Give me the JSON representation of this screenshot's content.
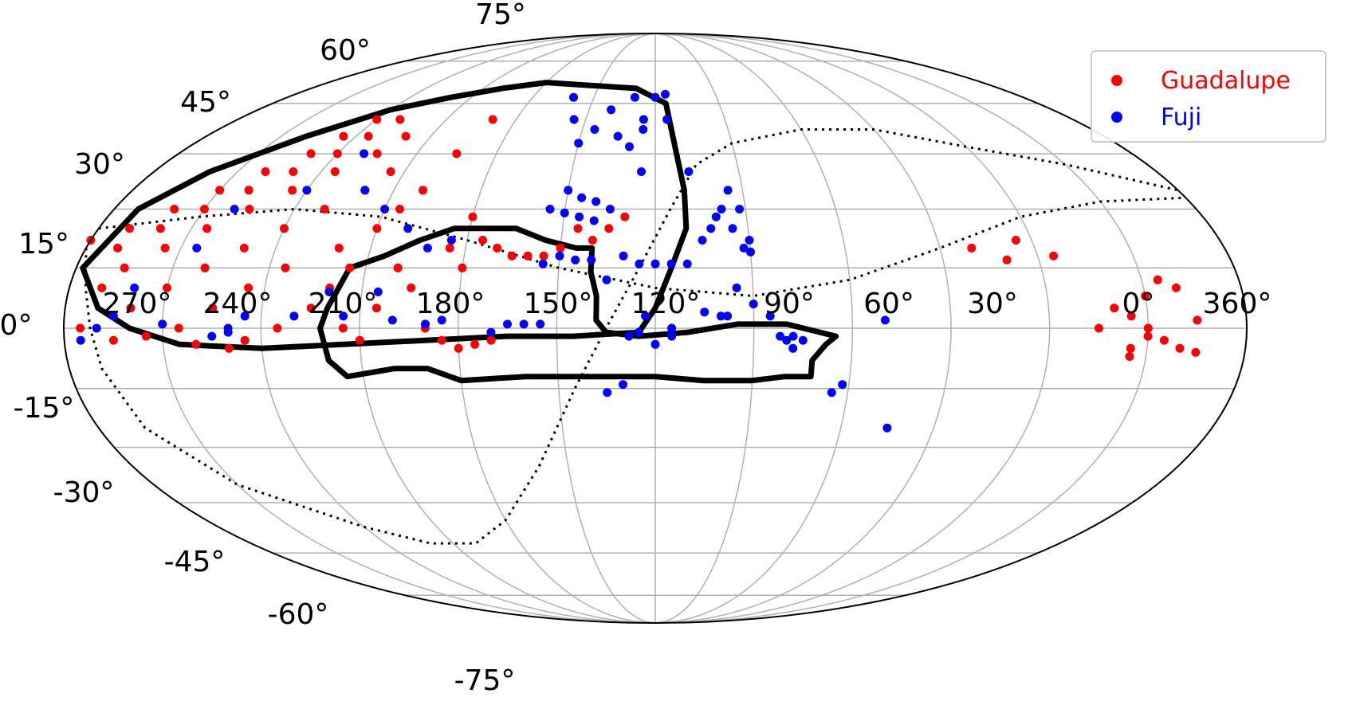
{
  "chart_data": {
    "type": "scatter",
    "projection": "mollweide",
    "title": "",
    "xlabel": "",
    "ylabel": "",
    "ra_tick_labels": [
      "270°",
      "240°",
      "210°",
      "180°",
      "150°",
      "120°",
      "90°",
      "60°",
      "30°",
      "0°",
      "360°"
    ],
    "dec_tick_labels": [
      "75°",
      "60°",
      "45°",
      "30°",
      "15°",
      "0°",
      "-15°",
      "-30°",
      "-45°",
      "-60°",
      "-75°"
    ],
    "grid": true,
    "legend_position": "top-right",
    "colors": {
      "Guadalupe": "#ff0000",
      "Fuji": "#0000ff",
      "footprint": "#000000",
      "grid": "#b0b0b0"
    },
    "series": [
      {
        "name": "Guadalupe",
        "color": "#ff0000",
        "points": [
          [
            -120,
            55
          ],
          [
            -125,
            50
          ],
          [
            -130,
            45
          ],
          [
            -140,
            40
          ],
          [
            -150,
            35
          ],
          [
            -160,
            30
          ],
          [
            -170,
            25
          ],
          [
            -180,
            22
          ],
          [
            -130,
            40
          ],
          [
            -140,
            35
          ],
          [
            -150,
            30
          ],
          [
            -160,
            25
          ],
          [
            -170,
            20
          ],
          [
            -120,
            45
          ],
          [
            -115,
            50
          ],
          [
            -110,
            55
          ],
          [
            -135,
            30
          ],
          [
            -145,
            25
          ],
          [
            -155,
            20
          ],
          [
            -165,
            15
          ],
          [
            -125,
            35
          ],
          [
            -115,
            40
          ],
          [
            -105,
            45
          ],
          [
            -100,
            50
          ],
          [
            -120,
            25
          ],
          [
            -130,
            20
          ],
          [
            -140,
            15
          ],
          [
            -150,
            10
          ],
          [
            -160,
            5
          ],
          [
            -110,
            30
          ],
          [
            -100,
            35
          ],
          [
            -95,
            40
          ],
          [
            -115,
            15
          ],
          [
            -125,
            10
          ],
          [
            -135,
            5
          ],
          [
            -145,
            0
          ],
          [
            -155,
            -2
          ],
          [
            -100,
            20
          ],
          [
            -90,
            25
          ],
          [
            -85,
            30
          ],
          [
            -105,
            5
          ],
          [
            -115,
            0
          ],
          [
            -125,
            -3
          ],
          [
            -100,
            10
          ],
          [
            -95,
            0
          ],
          [
            -90,
            -3
          ],
          [
            -85,
            5
          ],
          [
            -80,
            15
          ],
          [
            -75,
            10
          ],
          [
            -70,
            0
          ],
          [
            -65,
            -3
          ],
          [
            -60,
            -5
          ],
          [
            -55,
            -4
          ],
          [
            -50,
            -3
          ],
          [
            -170,
            10
          ],
          [
            -175,
            0
          ],
          [
            -165,
            -3
          ],
          [
            -140,
            -4
          ],
          [
            -130,
            -5
          ],
          [
            -95,
            15
          ],
          [
            -80,
            35
          ],
          [
            -75,
            45
          ],
          [
            -70,
            55
          ],
          [
            -60,
            28
          ],
          [
            -55,
            22
          ],
          [
            -50,
            20
          ],
          [
            -65,
            20
          ],
          [
            -45,
            18
          ],
          [
            -40,
            18
          ],
          [
            -60,
            15
          ],
          [
            140,
            5
          ],
          [
            145,
            3
          ],
          [
            150,
            0
          ],
          [
            155,
            -3
          ],
          [
            160,
            -5
          ],
          [
            150,
            -2
          ],
          [
            145,
            -5
          ],
          [
            135,
            0
          ],
          [
            165,
            2
          ],
          [
            150,
            8
          ],
          [
            160,
            10
          ],
          [
            155,
            12
          ],
          [
            125,
            18
          ],
          [
            115,
            22
          ],
          [
            100,
            20
          ],
          [
            110,
            17
          ],
          [
            145,
            -7
          ],
          [
            165,
            -6
          ],
          [
            -20,
            22
          ],
          [
            -25,
            25
          ],
          [
            -30,
            20
          ],
          [
            -35,
            18
          ],
          [
            -15,
            25
          ],
          [
            -10,
            28
          ]
        ]
      },
      {
        "name": "Fuji",
        "color": "#0000ff",
        "points": [
          [
            -10,
            62
          ],
          [
            0,
            62
          ],
          [
            5,
            63
          ],
          [
            -20,
            58
          ],
          [
            -25,
            52
          ],
          [
            -5,
            52
          ],
          [
            -30,
            48
          ],
          [
            -35,
            55
          ],
          [
            -40,
            62
          ],
          [
            -30,
            35
          ],
          [
            -25,
            33
          ],
          [
            -20,
            32
          ],
          [
            -35,
            30
          ],
          [
            -15,
            30
          ],
          [
            -25,
            28
          ],
          [
            -20,
            27
          ],
          [
            -30,
            29
          ],
          [
            -10,
            18
          ],
          [
            -5,
            16
          ],
          [
            0,
            16
          ],
          [
            5,
            16
          ],
          [
            10,
            16
          ],
          [
            -20,
            17
          ],
          [
            -25,
            17
          ],
          [
            -30,
            18
          ],
          [
            -35,
            16
          ],
          [
            15,
            22
          ],
          [
            18,
            25
          ],
          [
            25,
            25
          ],
          [
            28,
            20
          ],
          [
            30,
            19
          ],
          [
            22,
            30
          ],
          [
            25,
            35
          ],
          [
            -5,
            -1
          ],
          [
            5,
            0
          ],
          [
            -40,
            1
          ],
          [
            -70,
            1
          ],
          [
            -80,
            2
          ],
          [
            -95,
            3
          ],
          [
            -110,
            3
          ],
          [
            -130,
            -1
          ],
          [
            -135,
            -2
          ],
          [
            -150,
            1
          ],
          [
            -100,
            9
          ],
          [
            -85,
            9
          ],
          [
            -65,
            2
          ],
          [
            -50,
            -1
          ],
          [
            -45,
            1
          ],
          [
            -35,
            1
          ],
          [
            5,
            -2
          ],
          [
            -8,
            -2
          ],
          [
            20,
            3
          ],
          [
            22,
            3
          ],
          [
            45,
            -3
          ],
          [
            55,
            -16
          ],
          [
            58,
            -14
          ],
          [
            -10,
            -14
          ],
          [
            -15,
            -16
          ],
          [
            75,
            -25
          ],
          [
            -65,
            22
          ],
          [
            -72,
            20
          ],
          [
            -80,
            25
          ],
          [
            -90,
            30
          ],
          [
            -100,
            35
          ],
          [
            -110,
            45
          ],
          [
            -120,
            35
          ],
          [
            -140,
            30
          ],
          [
            -145,
            20
          ],
          [
            -160,
            10
          ],
          [
            -165,
            3
          ],
          [
            -170,
            0
          ],
          [
            -175,
            -3
          ],
          [
            -125,
            3
          ],
          [
            -130,
            0
          ],
          [
            70,
            2
          ],
          [
            35,
            3
          ],
          [
            38,
            -2
          ],
          [
            40,
            -3
          ],
          [
            42,
            -5
          ],
          [
            42,
            -2
          ],
          [
            30,
            6
          ],
          [
            25,
            10
          ],
          [
            -15,
            12
          ],
          [
            30,
            22
          ],
          [
            28,
            30
          ],
          [
            12,
            40
          ],
          [
            20,
            28
          ],
          [
            -5,
            40
          ],
          [
            -10,
            47
          ],
          [
            -15,
            50
          ],
          [
            -5,
            55
          ],
          [
            5,
            55
          ],
          [
            15,
            4
          ],
          [
            -3,
            3
          ],
          [
            0,
            -4
          ]
        ]
      }
    ]
  },
  "legend": [
    {
      "label": "Guadalupe",
      "color": "#ff0000"
    },
    {
      "label": "Fuji",
      "color": "#0000ff"
    }
  ]
}
